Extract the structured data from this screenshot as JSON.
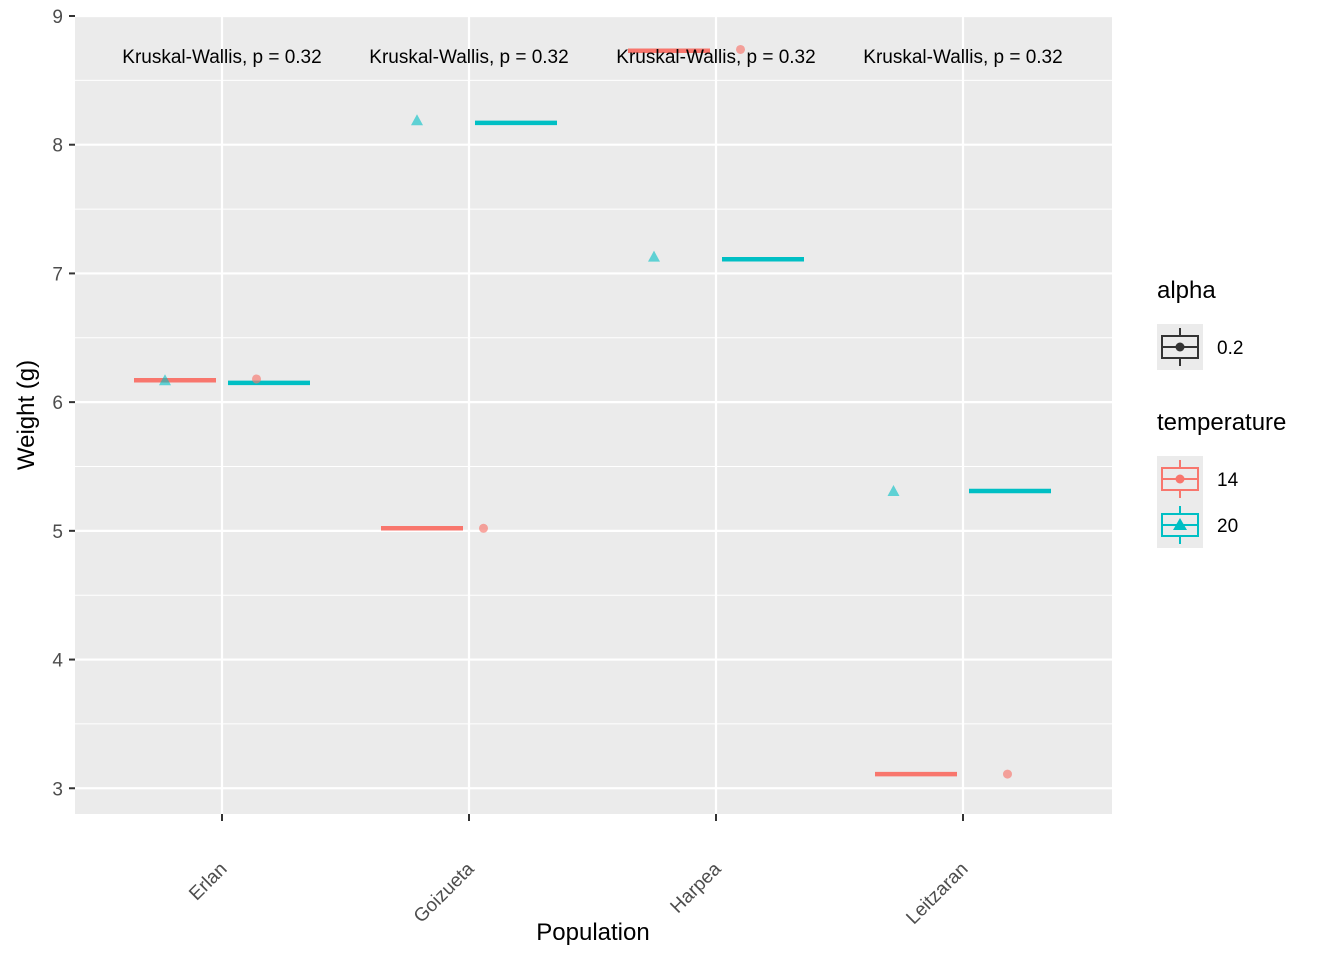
{
  "chart_data": {
    "type": "box",
    "xlabel": "Population",
    "ylabel": "Weight (g)",
    "ylim": [
      2.8,
      9.0
    ],
    "yticks": [
      3,
      4,
      5,
      6,
      7,
      8,
      9
    ],
    "categories": [
      "Erlan",
      "Goizueta",
      "Harpea",
      "Leitzaran"
    ],
    "grid": true,
    "legend_position": "right",
    "annotations": [
      "Kruskal-Wallis, p = 0.32",
      "Kruskal-Wallis, p = 0.32",
      "Kruskal-Wallis, p = 0.32",
      "Kruskal-Wallis, p = 0.32"
    ],
    "series": [
      {
        "name": "14",
        "color": "#F8766D",
        "values": [
          6.17,
          5.02,
          8.73,
          3.11
        ],
        "points": [
          6.18,
          5.02,
          8.74,
          3.11
        ]
      },
      {
        "name": "20",
        "color": "#00BFC4",
        "values": [
          6.15,
          8.17,
          7.11,
          5.31
        ],
        "points": [
          6.17,
          8.19,
          7.13,
          5.31
        ]
      }
    ],
    "legends": [
      {
        "title": "alpha",
        "entries": [
          {
            "label": "0.2",
            "color": "#333333"
          }
        ]
      },
      {
        "title": "temperature",
        "entries": [
          {
            "label": "14",
            "color": "#F8766D"
          },
          {
            "label": "20",
            "color": "#00BFC4"
          }
        ]
      }
    ]
  }
}
